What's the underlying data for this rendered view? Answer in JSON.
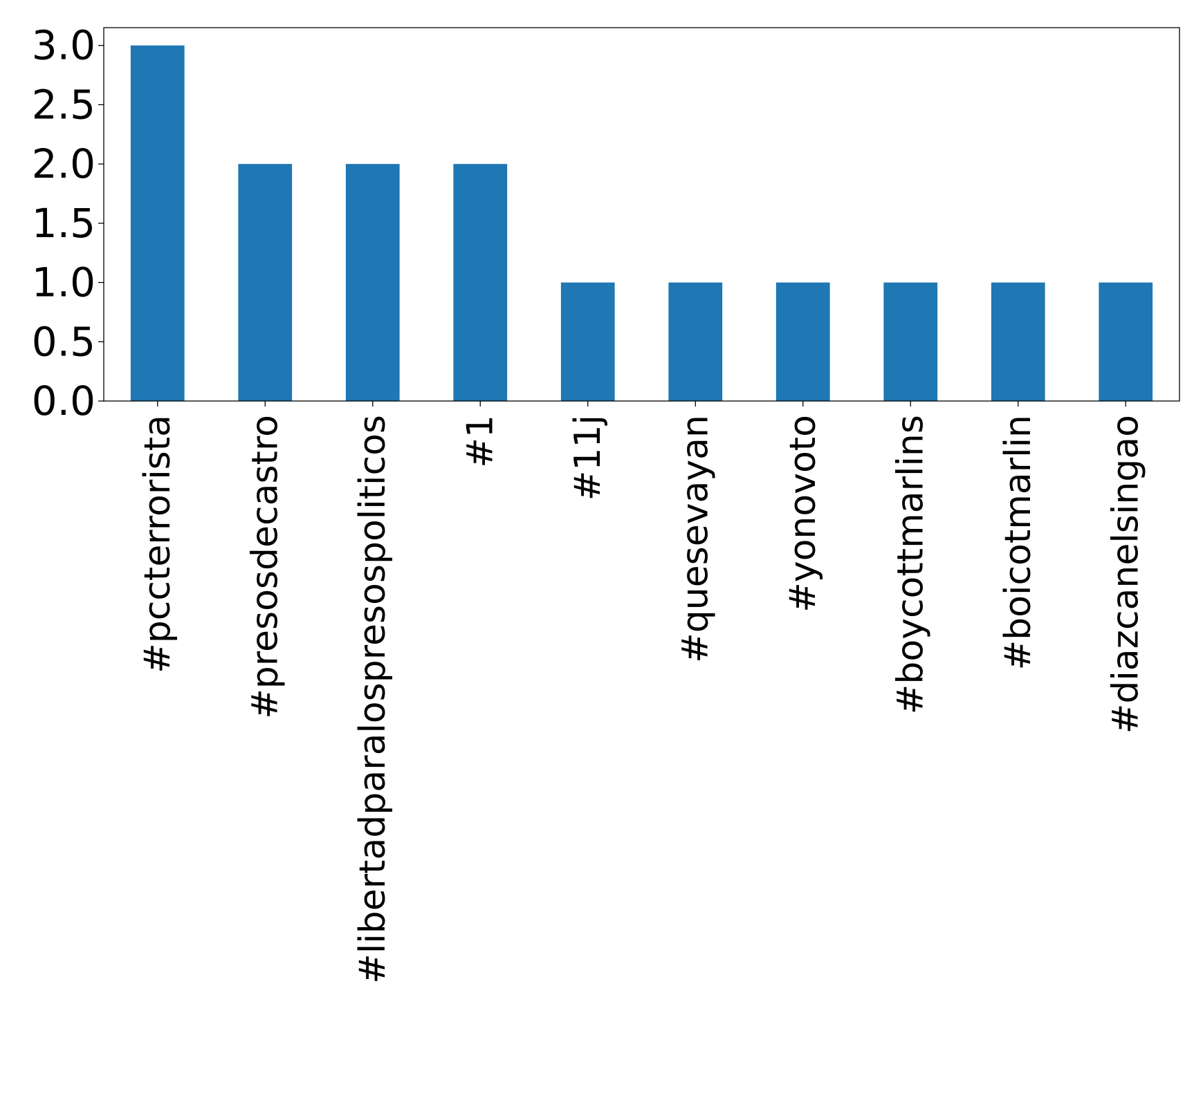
{
  "chart_data": {
    "type": "bar",
    "title": "",
    "xlabel": "",
    "ylabel": "",
    "categories": [
      "#pccterrorista",
      "#presosdecastro",
      "#libertadparalospresospoliticos",
      "#1",
      "#11j",
      "#quesevayan",
      "#yonovoto",
      "#boycottmarlins",
      "#boicotmarlin",
      "#diazcanelsingao"
    ],
    "values": [
      3,
      2,
      2,
      2,
      1,
      1,
      1,
      1,
      1,
      1
    ],
    "ylim": [
      0,
      3.15
    ],
    "yticks": [
      0.0,
      0.5,
      1.0,
      1.5,
      2.0,
      2.5,
      3.0
    ],
    "ytick_labels": [
      "0.0",
      "0.5",
      "1.0",
      "1.5",
      "2.0",
      "2.5",
      "3.0"
    ],
    "grid": false,
    "legend": "none",
    "bar_color": "#1f77b4"
  }
}
